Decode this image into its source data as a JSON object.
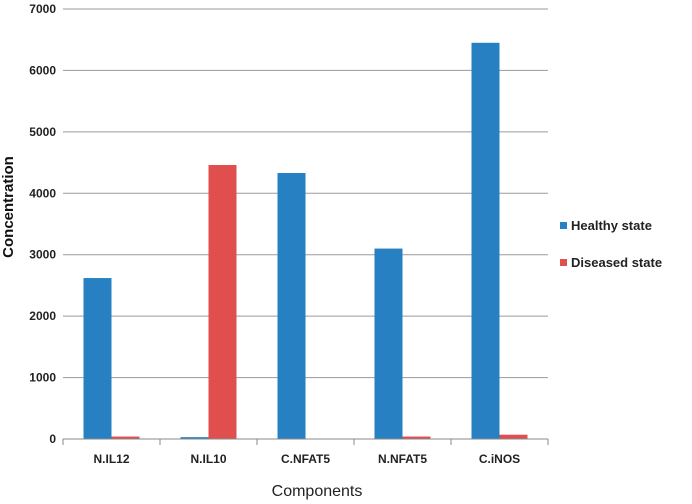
{
  "chart_data": {
    "type": "bar",
    "categories": [
      "N.IL12",
      "N.IL10",
      "C.NFAT5",
      "N.NFAT5",
      "C.iNOS"
    ],
    "series": [
      {
        "name": "Healthy state",
        "values": [
          2620,
          30,
          4330,
          3100,
          6450
        ],
        "color": "#2680c2"
      },
      {
        "name": "Diseased state",
        "values": [
          40,
          4460,
          0,
          40,
          70
        ],
        "color": "#e04e4e"
      }
    ],
    "xlabel": "Components",
    "ylabel": "Concentration",
    "ylim": [
      0,
      7000
    ],
    "yticks": [
      0,
      1000,
      2000,
      3000,
      4000,
      5000,
      6000,
      7000
    ],
    "grid": true,
    "legend_position": "right"
  }
}
